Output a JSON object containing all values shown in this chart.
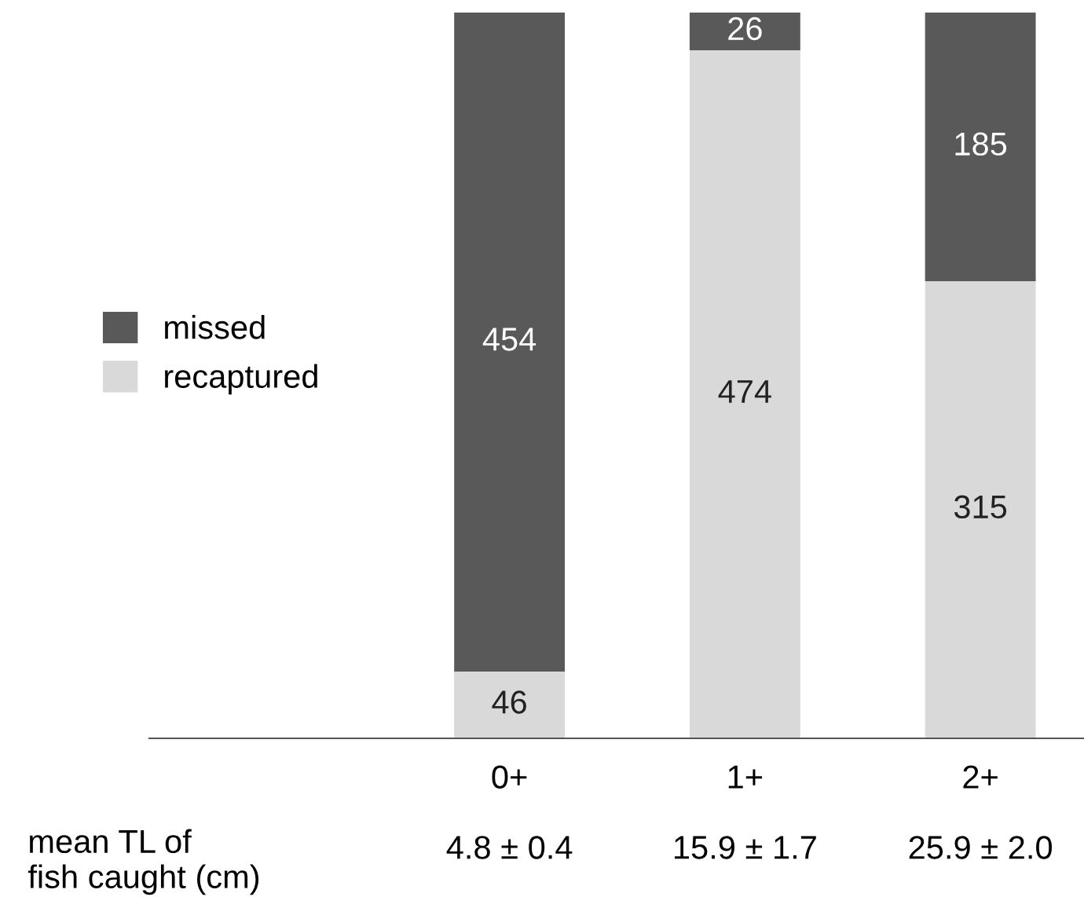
{
  "chart_data": {
    "type": "bar",
    "stacked": true,
    "xlabel": "mean TL of\nfish caught (cm)",
    "categories": [
      "0+\n\n4.8 ± 0.4",
      "1+\n\n15.9 ± 1.7",
      "2+\n\n25.9 ± 2.0"
    ],
    "series": [
      {
        "name": "recaptured",
        "color": "#d9d9d9",
        "values": [
          46,
          474,
          315
        ]
      },
      {
        "name": "missed",
        "color": "#595959",
        "values": [
          454,
          26,
          185
        ]
      }
    ],
    "data_labels": true,
    "legend": "left",
    "grid": false
  }
}
